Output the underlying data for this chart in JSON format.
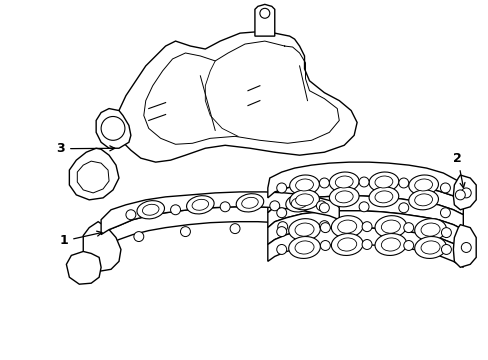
{
  "background_color": "#ffffff",
  "line_color": "#000000",
  "line_width": 1.0,
  "label_1_text": "1",
  "label_2_text": "2",
  "label_3_text": "3",
  "fig_width": 4.89,
  "fig_height": 3.6,
  "dpi": 100
}
